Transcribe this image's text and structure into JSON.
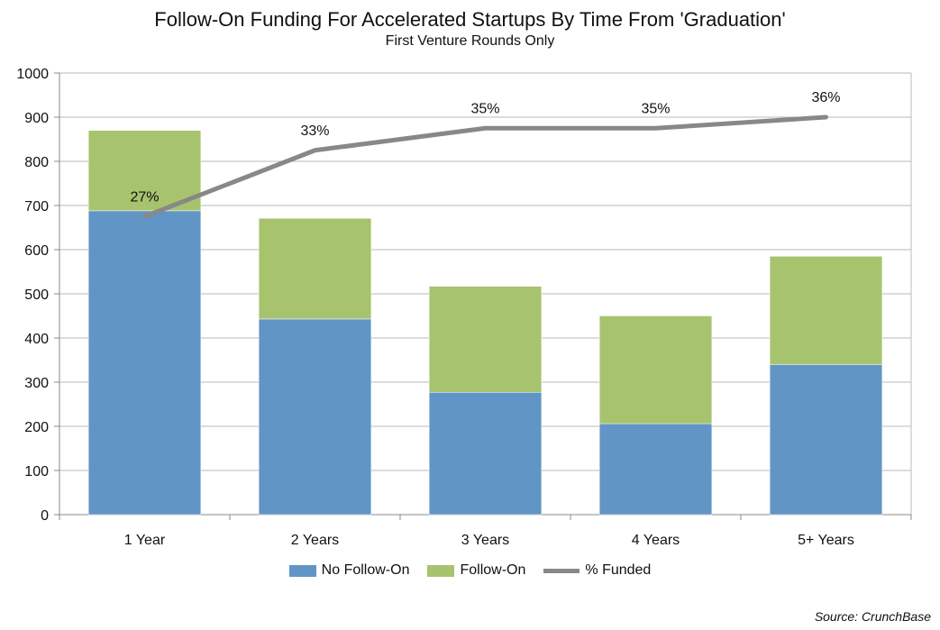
{
  "chart_data": {
    "type": "bar",
    "stacked": true,
    "title": "Follow-On Funding For Accelerated Startups By Time From 'Graduation'",
    "subtitle": "First Venture Rounds Only",
    "categories": [
      "1 Year",
      "2 Years",
      "3 Years",
      "4 Years",
      "5+ Years"
    ],
    "series": [
      {
        "name": "No Follow-On",
        "color": "#6195c6",
        "values": [
          688,
          443,
          277,
          206,
          340
        ]
      },
      {
        "name": "Follow-On",
        "color": "#a7c36e",
        "values": [
          182,
          228,
          240,
          244,
          245
        ]
      }
    ],
    "line_series": {
      "name": "% Funded",
      "color": "#888888",
      "values": [
        27,
        33,
        35,
        35,
        36
      ],
      "labels": [
        "27%",
        "33%",
        "35%",
        "35%",
        "36%"
      ],
      "secondary_axis_range": [
        0,
        40
      ]
    },
    "ylim": [
      0,
      1000
    ],
    "yticks": [
      0,
      100,
      200,
      300,
      400,
      500,
      600,
      700,
      800,
      900,
      1000
    ],
    "grid": true,
    "legend_position": "bottom",
    "source": "Source: CrunchBase"
  }
}
